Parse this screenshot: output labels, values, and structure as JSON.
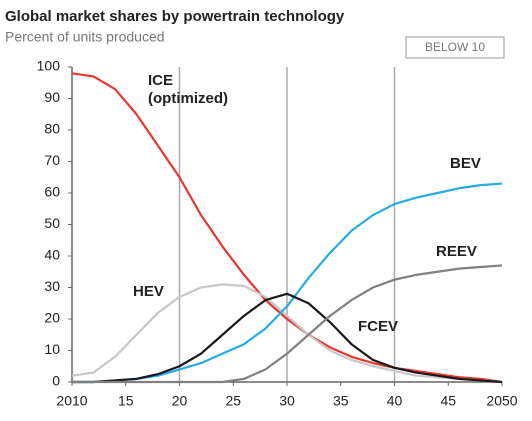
{
  "chart_data": {
    "type": "line",
    "title": "Global market shares by powertrain technology",
    "subtitle": "Percent of units produced",
    "badge": "BELOW 10",
    "x": [
      2010,
      2012,
      2014,
      2016,
      2018,
      2020,
      2022,
      2024,
      2026,
      2028,
      2030,
      2032,
      2034,
      2036,
      2038,
      2040,
      2042,
      2044,
      2046,
      2048,
      2050
    ],
    "series": [
      {
        "name": "ICE (optimized)",
        "color": "#e8372f",
        "values": [
          98,
          97,
          93,
          85,
          75,
          65,
          53,
          43,
          34,
          26,
          20,
          15,
          11,
          8,
          6,
          4.5,
          3.5,
          2.5,
          1.5,
          1,
          0
        ]
      },
      {
        "name": "HEV",
        "color": "#c8c8c8",
        "values": [
          2,
          3,
          8,
          15,
          22,
          27,
          30,
          31,
          30.5,
          27,
          21,
          15,
          10,
          7,
          5,
          3.5,
          2,
          1.5,
          1,
          0.5,
          0
        ]
      },
      {
        "name": "BEV",
        "color": "#29abe2",
        "values": [
          0,
          0,
          0.5,
          1,
          2,
          4,
          6,
          9,
          12,
          17,
          24,
          33,
          41,
          48,
          53,
          56.5,
          58.5,
          60,
          61.5,
          62.5,
          63
        ]
      },
      {
        "name": "REEV",
        "color": "#1a1a1a",
        "values": [
          0,
          0,
          0.5,
          1,
          2.5,
          5,
          9,
          15,
          21,
          26,
          28,
          25,
          19,
          12,
          7,
          4.5,
          3,
          2,
          1,
          0.5,
          0
        ]
      },
      {
        "name": "FCEV",
        "color": "#808080",
        "values": [
          0,
          0,
          0,
          0,
          0,
          0,
          0,
          0,
          1,
          4,
          9,
          15,
          21,
          26,
          30,
          32.5,
          34,
          35,
          36,
          36.5,
          37
        ]
      }
    ],
    "xlim": [
      2010,
      2050
    ],
    "xticks": [
      2010,
      {
        "value": 2015,
        "label": "15"
      },
      {
        "value": 2020,
        "label": "20"
      },
      {
        "value": 2025,
        "label": "25"
      },
      {
        "value": 2030,
        "label": "30"
      },
      {
        "value": 2035,
        "label": "35"
      },
      {
        "value": 2040,
        "label": "40"
      },
      {
        "value": 2045,
        "label": "45"
      },
      2050
    ],
    "ylim": [
      0,
      100
    ],
    "yticks": [
      0,
      10,
      20,
      30,
      40,
      50,
      60,
      70,
      80,
      90,
      100
    ],
    "xgrid": [
      2020,
      2030,
      2040
    ]
  }
}
